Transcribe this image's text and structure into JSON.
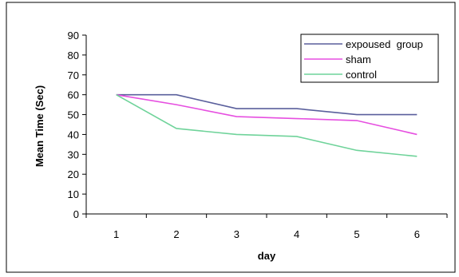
{
  "chart_data": {
    "type": "line",
    "title": "",
    "xlabel": "day",
    "ylabel": "Mean Time (Sec)",
    "categories": [
      "1",
      "2",
      "3",
      "4",
      "5",
      "6"
    ],
    "ylim": [
      0,
      90
    ],
    "yticks": [
      0,
      10,
      20,
      30,
      40,
      50,
      60,
      70,
      80,
      90
    ],
    "grid": false,
    "legend_position": "top-right",
    "series": [
      {
        "name": "expoused  group",
        "color": "#5a5f9c",
        "values": [
          60,
          60,
          53,
          53,
          50,
          50
        ]
      },
      {
        "name": "sham",
        "color": "#e64fe0",
        "values": [
          60,
          55,
          49,
          48,
          47,
          40
        ]
      },
      {
        "name": "control",
        "color": "#6fd39a",
        "values": [
          60,
          43,
          40,
          39,
          32,
          29
        ]
      }
    ]
  }
}
